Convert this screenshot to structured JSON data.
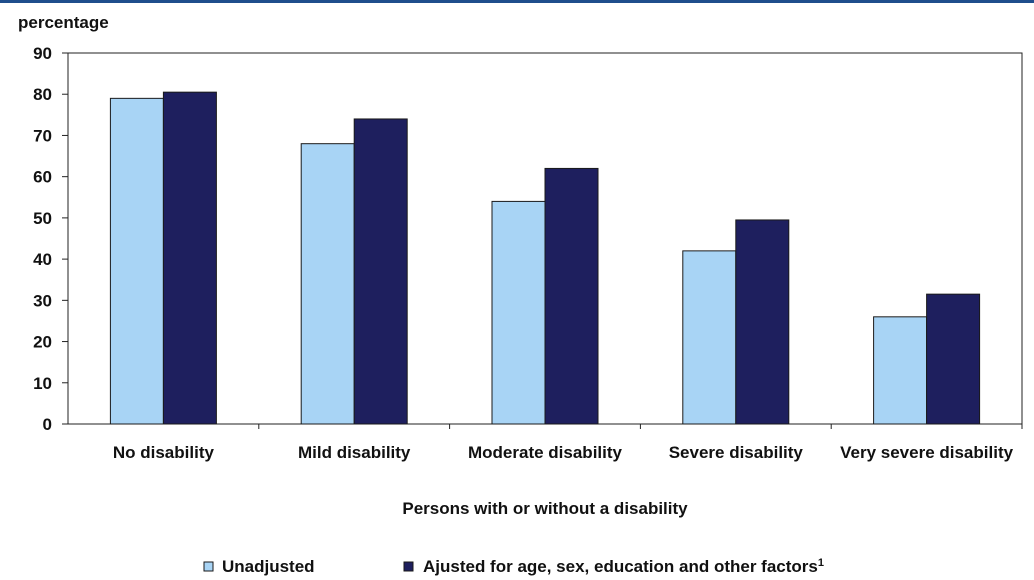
{
  "chart_data": {
    "type": "bar",
    "ylabel": "percentage",
    "xlabel": "Persons with or without a disability",
    "ylim": [
      0,
      90
    ],
    "yticks": [
      0,
      10,
      20,
      30,
      40,
      50,
      60,
      70,
      80,
      90
    ],
    "grid": false,
    "legend_position": "bottom",
    "categories": [
      "No disability",
      "Mild disability",
      "Moderate disability",
      "Severe disability",
      "Very severe disability"
    ],
    "series": [
      {
        "name": "Unadjusted",
        "color": "#a8d4f5",
        "values": [
          79,
          68,
          54,
          42,
          26
        ]
      },
      {
        "name": "Ajusted for age, sex, education and other factors",
        "footnote": "1",
        "color": "#1e1f5e",
        "values": [
          80.5,
          74,
          62,
          49.5,
          31.5
        ]
      }
    ]
  }
}
